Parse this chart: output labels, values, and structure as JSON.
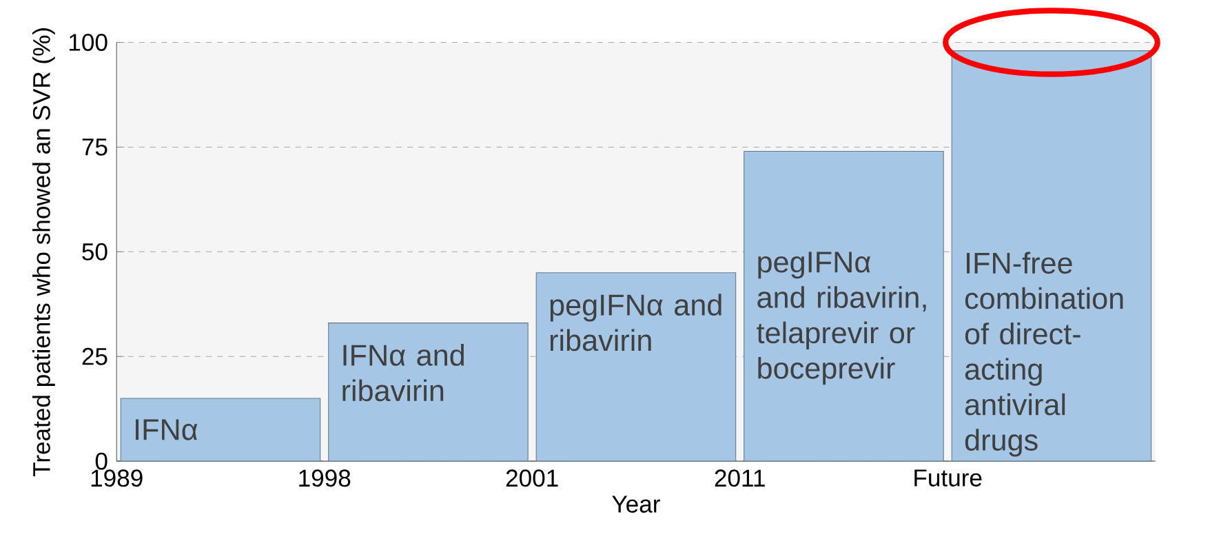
{
  "chart_data": {
    "type": "bar",
    "xlabel": "Year",
    "ylabel": "Treated patients who showed an SVR (%)",
    "categories": [
      "1989",
      "1998",
      "2001",
      "2011",
      "Future"
    ],
    "values": [
      15,
      33,
      45,
      74,
      98
    ],
    "color": "#a6c6e6",
    "ylim": [
      0,
      100
    ],
    "yticks": [
      0,
      25,
      50,
      75,
      100
    ],
    "grid": "y",
    "annotations": [
      "IFNα",
      "IFNα and ribavirin",
      "pegIFNα and ribavirin",
      "pegIFNα and ribavirin, telaprevir or boceprevir",
      "IFN-free combination of direct-acting antiviral drugs"
    ]
  }
}
